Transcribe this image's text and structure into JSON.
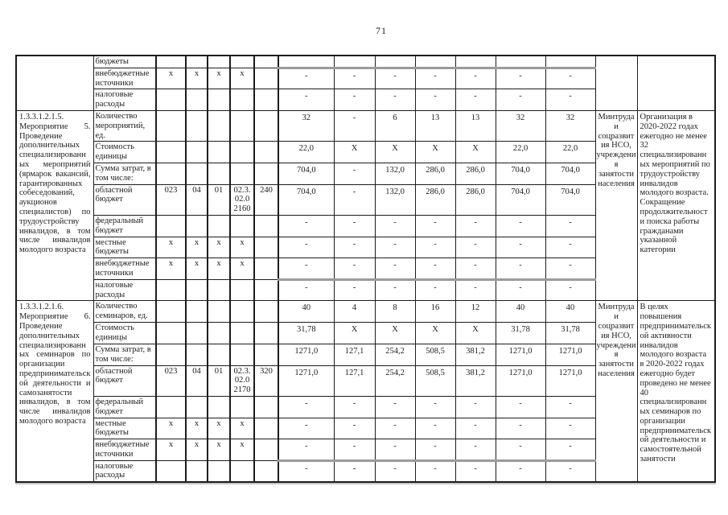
{
  "page_number": "71",
  "colors": {
    "paper": "#ffffff",
    "ink": "#1e1e1e",
    "border": "#1c1c1c",
    "scan_artifact_gray": "#9b9b9b"
  },
  "table": {
    "continuation_rows": [
      {
        "indicator": "бюджеты",
        "grbs": "",
        "rz": "",
        "pr": "",
        "csr": "",
        "vr": "",
        "values": [
          "",
          "",
          "",
          "",
          "",
          "",
          ""
        ]
      },
      {
        "indicator": "внебюджетные источники",
        "grbs": "x",
        "rz": "x",
        "pr": "x",
        "csr": "x",
        "vr": "",
        "values": [
          "-",
          "-",
          "-",
          "-",
          "-",
          "-",
          "-"
        ]
      },
      {
        "indicator": "налоговые расходы",
        "grbs": "",
        "rz": "",
        "pr": "",
        "csr": "",
        "vr": "",
        "values": [
          "-",
          "-",
          "-",
          "-",
          "-",
          "-",
          "-"
        ]
      }
    ],
    "blocks": [
      {
        "title": "1.3.3.1.2.1.5. Мероприятие 5. Проведение дополнительных специализированных мероприятий (ярмарок вакансий, гарантированных собеседований, аукционов специалистов) по трудоустройству инвалидов, в том числе инвалидов молодого возраста",
        "executor": "Минтруда и соцразвития НСО, учреждения занятости населения",
        "expected_result": "Организация в 2020-2022 годах ежегодно не менее 32 специализированных мероприятий по трудоустройству инвалидов молодого возраста. Сокращение продолжительности поиска работы гражданами указанной категории",
        "rows": [
          {
            "indicator": "Количество мероприятий, ед.",
            "grbs": "",
            "rz": "",
            "pr": "",
            "csr": "",
            "vr": "",
            "values": [
              "32",
              "-",
              "6",
              "13",
              "13",
              "32",
              "32"
            ]
          },
          {
            "indicator": "Стоимость единицы",
            "grbs": "",
            "rz": "",
            "pr": "",
            "csr": "",
            "vr": "",
            "values": [
              "22,0",
              "X",
              "X",
              "X",
              "X",
              "22,0",
              "22,0"
            ]
          },
          {
            "indicator": "Сумма затрат, в том числе:",
            "grbs": "",
            "rz": "",
            "pr": "",
            "csr": "",
            "vr": "",
            "values": [
              "704,0",
              "-",
              "132,0",
              "286,0",
              "286,0",
              "704,0",
              "704,0"
            ]
          },
          {
            "indicator": "областной бюджет",
            "grbs": "023",
            "rz": "04",
            "pr": "01",
            "csr": "02.3.\n02.0\n2160",
            "vr": "240",
            "values": [
              "704,0",
              "-",
              "132,0",
              "286,0",
              "286,0",
              "704,0",
              "704,0"
            ]
          },
          {
            "indicator": "федеральный бюджет",
            "grbs": "",
            "rz": "",
            "pr": "",
            "csr": "",
            "vr": "",
            "values": [
              "-",
              "-",
              "-",
              "-",
              "-",
              "-",
              "-"
            ]
          },
          {
            "indicator": "местные бюджеты",
            "grbs": "x",
            "rz": "x",
            "pr": "x",
            "csr": "x",
            "vr": "",
            "values": [
              "-",
              "-",
              "-",
              "-",
              "-",
              "-",
              "-"
            ]
          },
          {
            "indicator": "внебюджетные источники",
            "grbs": "x",
            "rz": "x",
            "pr": "x",
            "csr": "x",
            "vr": "",
            "values": [
              "-",
              "-",
              "-",
              "-",
              "-",
              "-",
              "-"
            ]
          },
          {
            "indicator": "налоговые расходы",
            "grbs": "",
            "rz": "",
            "pr": "",
            "csr": "",
            "vr": "",
            "values": [
              "-",
              "-",
              "-",
              "-",
              "-",
              "-",
              "-"
            ]
          }
        ]
      },
      {
        "title": "1.3.3.1.2.1.6. Мероприятие 6. Проведение дополнительных специализированных семинаров по организации предпринимательской деятельности и самозанятости инвалидов, в том числе инвалидов молодого возраста",
        "executor": "Минтруда и соцразвития НСО, учреждения занятости населения",
        "expected_result": "В целях повышения предпринимательской активности инвалидов молодого возраста в 2020-2022 годах ежегодно будет проведено не менее 40 специализированных семинаров по организации предпринимательской деятельности и самостоятельной занятости",
        "rows": [
          {
            "indicator": "Количество семинаров, ед.",
            "grbs": "",
            "rz": "",
            "pr": "",
            "csr": "",
            "vr": "",
            "values": [
              "40",
              "4",
              "8",
              "16",
              "12",
              "40",
              "40"
            ]
          },
          {
            "indicator": "Стоимость единицы",
            "grbs": "",
            "rz": "",
            "pr": "",
            "csr": "",
            "vr": "",
            "values": [
              "31,78",
              "X",
              "X",
              "X",
              "X",
              "31,78",
              "31,78"
            ]
          },
          {
            "indicator": "Сумма затрат, в том числе:",
            "grbs": "",
            "rz": "",
            "pr": "",
            "csr": "",
            "vr": "",
            "values": [
              "1271,0",
              "127,1",
              "254,2",
              "508,5",
              "381,2",
              "1271,0",
              "1271,0"
            ]
          },
          {
            "indicator": "областной бюджет",
            "grbs": "023",
            "rz": "04",
            "pr": "01",
            "csr": "02.3.\n02.0\n2170",
            "vr": "320",
            "values": [
              "1271,0",
              "127,1",
              "254,2",
              "508,5",
              "381,2",
              "1271,0",
              "1271,0"
            ]
          },
          {
            "indicator": "федеральный бюджет",
            "grbs": "",
            "rz": "",
            "pr": "",
            "csr": "",
            "vr": "",
            "values": [
              "-",
              "-",
              "-",
              "-",
              "-",
              "-",
              "-"
            ]
          },
          {
            "indicator": "местные бюджеты",
            "grbs": "x",
            "rz": "x",
            "pr": "x",
            "csr": "x",
            "vr": "",
            "values": [
              "-",
              "-",
              "-",
              "-",
              "-",
              "-",
              "-"
            ]
          },
          {
            "indicator": "внебюджетные источники",
            "grbs": "x",
            "rz": "x",
            "pr": "x",
            "csr": "x",
            "vr": "",
            "values": [
              "-",
              "-",
              "-",
              "-",
              "-",
              "-",
              "-"
            ]
          },
          {
            "indicator": "налоговые расходы",
            "grbs": "",
            "rz": "",
            "pr": "",
            "csr": "",
            "vr": "",
            "values": [
              "-",
              "-",
              "-",
              "-",
              "-",
              "-",
              "-"
            ]
          }
        ]
      }
    ]
  }
}
